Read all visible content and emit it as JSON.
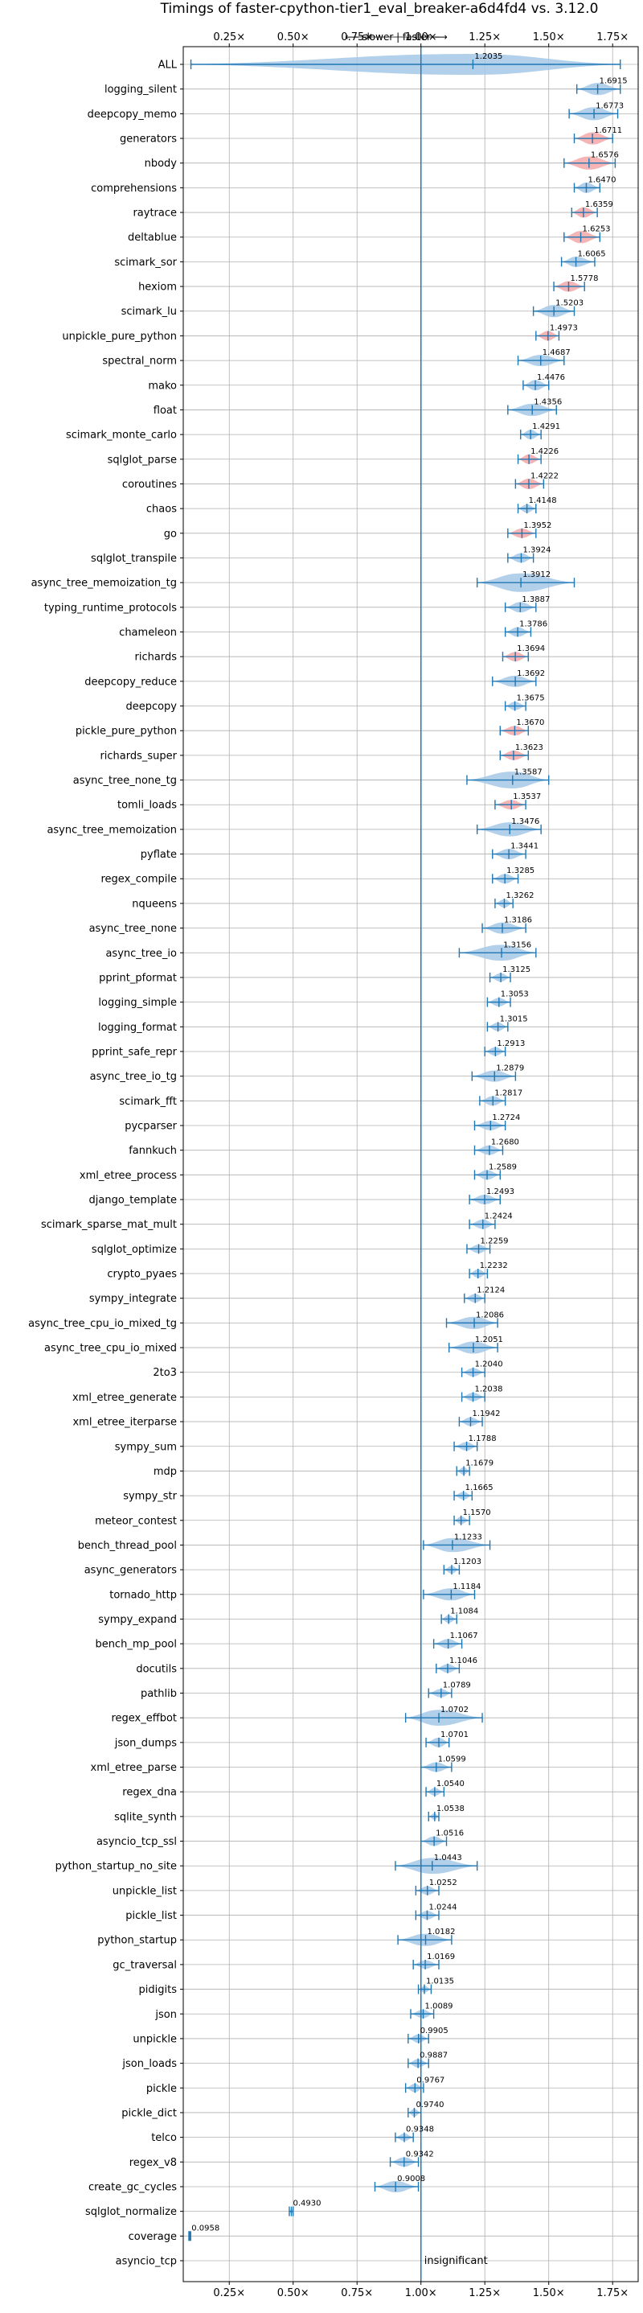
{
  "chart_data": {
    "type": "violin",
    "title": "Timings of faster-cpython-tier1_eval_breaker-a6d4fd4 vs. 3.12.0",
    "direction_label": "⟵ slower | faster ⟶",
    "xlim": [
      0.07,
      1.85
    ],
    "x_ticks": [
      0.25,
      0.5,
      0.75,
      1.0,
      1.25,
      1.5,
      1.75
    ],
    "x_tick_labels": [
      "0.25×",
      "0.50×",
      "0.75×",
      "1.00×",
      "1.25×",
      "1.50×",
      "1.75×"
    ],
    "reference_line": 1.0,
    "grid": true,
    "colors": {
      "blue": "#1f77b4",
      "violin_blue": "#a6c8e6",
      "violin_red": "#f4a7a7"
    },
    "benchmarks": [
      {
        "name": "ALL",
        "value": 1.2035,
        "label": "1.2035",
        "color": "blue",
        "lo": 0.1,
        "hi": 1.78,
        "w": 0.4
      },
      {
        "name": "logging_silent",
        "value": 1.6915,
        "label": "1.6915",
        "color": "blue",
        "lo": 1.61,
        "hi": 1.78,
        "w": 0.08
      },
      {
        "name": "deepcopy_memo",
        "value": 1.6773,
        "label": "1.6773",
        "color": "blue",
        "lo": 1.58,
        "hi": 1.77,
        "w": 0.09
      },
      {
        "name": "generators",
        "value": 1.6711,
        "label": "1.6711",
        "color": "red",
        "lo": 1.6,
        "hi": 1.75,
        "w": 0.08
      },
      {
        "name": "nbody",
        "value": 1.6576,
        "label": "1.6576",
        "color": "red",
        "lo": 1.56,
        "hi": 1.76,
        "w": 0.09
      },
      {
        "name": "comprehensions",
        "value": 1.647,
        "label": "1.6470",
        "color": "blue",
        "lo": 1.6,
        "hi": 1.7,
        "w": 0.06
      },
      {
        "name": "raytrace",
        "value": 1.6359,
        "label": "1.6359",
        "color": "red",
        "lo": 1.59,
        "hi": 1.69,
        "w": 0.06
      },
      {
        "name": "deltablue",
        "value": 1.6253,
        "label": "1.6253",
        "color": "red",
        "lo": 1.56,
        "hi": 1.7,
        "w": 0.08
      },
      {
        "name": "scimark_sor",
        "value": 1.6065,
        "label": "1.6065",
        "color": "blue",
        "lo": 1.55,
        "hi": 1.68,
        "w": 0.06
      },
      {
        "name": "hexiom",
        "value": 1.5778,
        "label": "1.5778",
        "color": "red",
        "lo": 1.52,
        "hi": 1.64,
        "w": 0.06
      },
      {
        "name": "scimark_lu",
        "value": 1.5203,
        "label": "1.5203",
        "color": "blue",
        "lo": 1.44,
        "hi": 1.6,
        "w": 0.08
      },
      {
        "name": "unpickle_pure_python",
        "value": 1.4973,
        "label": "1.4973",
        "color": "red",
        "lo": 1.45,
        "hi": 1.54,
        "w": 0.05
      },
      {
        "name": "spectral_norm",
        "value": 1.4687,
        "label": "1.4687",
        "color": "blue",
        "lo": 1.38,
        "hi": 1.56,
        "w": 0.07
      },
      {
        "name": "mako",
        "value": 1.4476,
        "label": "1.4476",
        "color": "blue",
        "lo": 1.4,
        "hi": 1.5,
        "w": 0.06
      },
      {
        "name": "float",
        "value": 1.4356,
        "label": "1.4356",
        "color": "blue",
        "lo": 1.34,
        "hi": 1.53,
        "w": 0.08
      },
      {
        "name": "scimark_monte_carlo",
        "value": 1.4291,
        "label": "1.4291",
        "color": "blue",
        "lo": 1.39,
        "hi": 1.47,
        "w": 0.05
      },
      {
        "name": "sqlglot_parse",
        "value": 1.4226,
        "label": "1.4226",
        "color": "red",
        "lo": 1.38,
        "hi": 1.47,
        "w": 0.05
      },
      {
        "name": "coroutines",
        "value": 1.4222,
        "label": "1.4222",
        "color": "red",
        "lo": 1.37,
        "hi": 1.48,
        "w": 0.06
      },
      {
        "name": "chaos",
        "value": 1.4148,
        "label": "1.4148",
        "color": "blue",
        "lo": 1.38,
        "hi": 1.45,
        "w": 0.04
      },
      {
        "name": "go",
        "value": 1.3952,
        "label": "1.3952",
        "color": "red",
        "lo": 1.34,
        "hi": 1.45,
        "w": 0.05
      },
      {
        "name": "sqlglot_transpile",
        "value": 1.3924,
        "label": "1.3924",
        "color": "blue",
        "lo": 1.34,
        "hi": 1.44,
        "w": 0.05
      },
      {
        "name": "async_tree_memoization_tg",
        "value": 1.3912,
        "label": "1.3912",
        "color": "blue",
        "lo": 1.22,
        "hi": 1.6,
        "w": 0.15
      },
      {
        "name": "typing_runtime_protocols",
        "value": 1.3887,
        "label": "1.3887",
        "color": "blue",
        "lo": 1.33,
        "hi": 1.45,
        "w": 0.06
      },
      {
        "name": "chameleon",
        "value": 1.3786,
        "label": "1.3786",
        "color": "blue",
        "lo": 1.33,
        "hi": 1.43,
        "w": 0.05
      },
      {
        "name": "richards",
        "value": 1.3694,
        "label": "1.3694",
        "color": "red",
        "lo": 1.32,
        "hi": 1.42,
        "w": 0.05
      },
      {
        "name": "deepcopy_reduce",
        "value": 1.3692,
        "label": "1.3692",
        "color": "blue",
        "lo": 1.28,
        "hi": 1.45,
        "w": 0.07
      },
      {
        "name": "deepcopy",
        "value": 1.3675,
        "label": "1.3675",
        "color": "blue",
        "lo": 1.33,
        "hi": 1.41,
        "w": 0.04
      },
      {
        "name": "pickle_pure_python",
        "value": 1.367,
        "label": "1.3670",
        "color": "red",
        "lo": 1.31,
        "hi": 1.42,
        "w": 0.05
      },
      {
        "name": "richards_super",
        "value": 1.3623,
        "label": "1.3623",
        "color": "red",
        "lo": 1.31,
        "hi": 1.42,
        "w": 0.05
      },
      {
        "name": "async_tree_none_tg",
        "value": 1.3587,
        "label": "1.3587",
        "color": "blue",
        "lo": 1.18,
        "hi": 1.5,
        "w": 0.13
      },
      {
        "name": "tomli_loads",
        "value": 1.3537,
        "label": "1.3537",
        "color": "red",
        "lo": 1.29,
        "hi": 1.41,
        "w": 0.05
      },
      {
        "name": "async_tree_memoization",
        "value": 1.3476,
        "label": "1.3476",
        "color": "blue",
        "lo": 1.22,
        "hi": 1.47,
        "w": 0.1
      },
      {
        "name": "pyflate",
        "value": 1.3441,
        "label": "1.3441",
        "color": "blue",
        "lo": 1.28,
        "hi": 1.41,
        "w": 0.06
      },
      {
        "name": "regex_compile",
        "value": 1.3285,
        "label": "1.3285",
        "color": "blue",
        "lo": 1.28,
        "hi": 1.38,
        "w": 0.05
      },
      {
        "name": "nqueens",
        "value": 1.3262,
        "label": "1.3262",
        "color": "blue",
        "lo": 1.29,
        "hi": 1.36,
        "w": 0.04
      },
      {
        "name": "async_tree_none",
        "value": 1.3186,
        "label": "1.3186",
        "color": "blue",
        "lo": 1.24,
        "hi": 1.41,
        "w": 0.07
      },
      {
        "name": "async_tree_io",
        "value": 1.3156,
        "label": "1.3156",
        "color": "blue",
        "lo": 1.15,
        "hi": 1.45,
        "w": 0.12
      },
      {
        "name": "pprint_pformat",
        "value": 1.3125,
        "label": "1.3125",
        "color": "blue",
        "lo": 1.27,
        "hi": 1.35,
        "w": 0.04
      },
      {
        "name": "logging_simple",
        "value": 1.3053,
        "label": "1.3053",
        "color": "blue",
        "lo": 1.26,
        "hi": 1.35,
        "w": 0.04
      },
      {
        "name": "logging_format",
        "value": 1.3015,
        "label": "1.3015",
        "color": "blue",
        "lo": 1.26,
        "hi": 1.34,
        "w": 0.04
      },
      {
        "name": "pprint_safe_repr",
        "value": 1.2913,
        "label": "1.2913",
        "color": "blue",
        "lo": 1.25,
        "hi": 1.33,
        "w": 0.04
      },
      {
        "name": "async_tree_io_tg",
        "value": 1.2879,
        "label": "1.2879",
        "color": "blue",
        "lo": 1.2,
        "hi": 1.37,
        "w": 0.07
      },
      {
        "name": "scimark_fft",
        "value": 1.2817,
        "label": "1.2817",
        "color": "blue",
        "lo": 1.23,
        "hi": 1.33,
        "w": 0.05
      },
      {
        "name": "pycparser",
        "value": 1.2724,
        "label": "1.2724",
        "color": "blue",
        "lo": 1.21,
        "hi": 1.33,
        "w": 0.05
      },
      {
        "name": "fannkuch",
        "value": 1.268,
        "label": "1.2680",
        "color": "blue",
        "lo": 1.21,
        "hi": 1.32,
        "w": 0.05
      },
      {
        "name": "xml_etree_process",
        "value": 1.2589,
        "label": "1.2589",
        "color": "blue",
        "lo": 1.21,
        "hi": 1.31,
        "w": 0.05
      },
      {
        "name": "django_template",
        "value": 1.2493,
        "label": "1.2493",
        "color": "blue",
        "lo": 1.19,
        "hi": 1.31,
        "w": 0.05
      },
      {
        "name": "scimark_sparse_mat_mult",
        "value": 1.2424,
        "label": "1.2424",
        "color": "blue",
        "lo": 1.19,
        "hi": 1.29,
        "w": 0.05
      },
      {
        "name": "sqlglot_optimize",
        "value": 1.2259,
        "label": "1.2259",
        "color": "blue",
        "lo": 1.18,
        "hi": 1.27,
        "w": 0.04
      },
      {
        "name": "crypto_pyaes",
        "value": 1.2232,
        "label": "1.2232",
        "color": "blue",
        "lo": 1.19,
        "hi": 1.26,
        "w": 0.04
      },
      {
        "name": "sympy_integrate",
        "value": 1.2124,
        "label": "1.2124",
        "color": "blue",
        "lo": 1.17,
        "hi": 1.25,
        "w": 0.04
      },
      {
        "name": "async_tree_cpu_io_mixed_tg",
        "value": 1.2086,
        "label": "1.2086",
        "color": "blue",
        "lo": 1.1,
        "hi": 1.3,
        "w": 0.08
      },
      {
        "name": "async_tree_cpu_io_mixed",
        "value": 1.2051,
        "label": "1.2051",
        "color": "blue",
        "lo": 1.11,
        "hi": 1.3,
        "w": 0.08
      },
      {
        "name": "2to3",
        "value": 1.204,
        "label": "1.2040",
        "color": "blue",
        "lo": 1.16,
        "hi": 1.25,
        "w": 0.04
      },
      {
        "name": "xml_etree_generate",
        "value": 1.2038,
        "label": "1.2038",
        "color": "blue",
        "lo": 1.16,
        "hi": 1.25,
        "w": 0.04
      },
      {
        "name": "xml_etree_iterparse",
        "value": 1.1942,
        "label": "1.1942",
        "color": "blue",
        "lo": 1.15,
        "hi": 1.24,
        "w": 0.04
      },
      {
        "name": "sympy_sum",
        "value": 1.1788,
        "label": "1.1788",
        "color": "blue",
        "lo": 1.13,
        "hi": 1.22,
        "w": 0.04
      },
      {
        "name": "mdp",
        "value": 1.1679,
        "label": "1.1679",
        "color": "blue",
        "lo": 1.14,
        "hi": 1.19,
        "w": 0.03
      },
      {
        "name": "sympy_str",
        "value": 1.1665,
        "label": "1.1665",
        "color": "blue",
        "lo": 1.13,
        "hi": 1.2,
        "w": 0.03
      },
      {
        "name": "meteor_contest",
        "value": 1.157,
        "label": "1.1570",
        "color": "blue",
        "lo": 1.13,
        "hi": 1.19,
        "w": 0.03
      },
      {
        "name": "bench_thread_pool",
        "value": 1.1233,
        "label": "1.1233",
        "color": "blue",
        "lo": 1.01,
        "hi": 1.27,
        "w": 0.1
      },
      {
        "name": "async_generators",
        "value": 1.1203,
        "label": "1.1203",
        "color": "blue",
        "lo": 1.09,
        "hi": 1.15,
        "w": 0.03
      },
      {
        "name": "tornado_http",
        "value": 1.1184,
        "label": "1.1184",
        "color": "blue",
        "lo": 1.01,
        "hi": 1.21,
        "w": 0.08
      },
      {
        "name": "sympy_expand",
        "value": 1.1084,
        "label": "1.1084",
        "color": "blue",
        "lo": 1.08,
        "hi": 1.14,
        "w": 0.03
      },
      {
        "name": "bench_mp_pool",
        "value": 1.1067,
        "label": "1.1067",
        "color": "blue",
        "lo": 1.05,
        "hi": 1.16,
        "w": 0.05
      },
      {
        "name": "docutils",
        "value": 1.1046,
        "label": "1.1046",
        "color": "blue",
        "lo": 1.06,
        "hi": 1.15,
        "w": 0.04
      },
      {
        "name": "pathlib",
        "value": 1.0789,
        "label": "1.0789",
        "color": "blue",
        "lo": 1.03,
        "hi": 1.12,
        "w": 0.04
      },
      {
        "name": "regex_effbot",
        "value": 1.0702,
        "label": "1.0702",
        "color": "blue",
        "lo": 0.94,
        "hi": 1.24,
        "w": 0.12
      },
      {
        "name": "json_dumps",
        "value": 1.0701,
        "label": "1.0701",
        "color": "blue",
        "lo": 1.02,
        "hi": 1.11,
        "w": 0.05
      },
      {
        "name": "xml_etree_parse",
        "value": 1.0599,
        "label": "1.0599",
        "color": "blue",
        "lo": 1.0,
        "hi": 1.12,
        "w": 0.05
      },
      {
        "name": "regex_dna",
        "value": 1.054,
        "label": "1.0540",
        "color": "blue",
        "lo": 1.02,
        "hi": 1.09,
        "w": 0.03
      },
      {
        "name": "sqlite_synth",
        "value": 1.0538,
        "label": "1.0538",
        "color": "blue",
        "lo": 1.03,
        "hi": 1.07,
        "w": 0.02
      },
      {
        "name": "asyncio_tcp_ssl",
        "value": 1.0516,
        "label": "1.0516",
        "color": "blue",
        "lo": 1.0,
        "hi": 1.1,
        "w": 0.05
      },
      {
        "name": "python_startup_no_site",
        "value": 1.0443,
        "label": "1.0443",
        "color": "blue",
        "lo": 0.9,
        "hi": 1.22,
        "w": 0.12
      },
      {
        "name": "unpickle_list",
        "value": 1.0252,
        "label": "1.0252",
        "color": "blue",
        "lo": 0.98,
        "hi": 1.07,
        "w": 0.04
      },
      {
        "name": "pickle_list",
        "value": 1.0244,
        "label": "1.0244",
        "color": "blue",
        "lo": 0.98,
        "hi": 1.07,
        "w": 0.04
      },
      {
        "name": "python_startup",
        "value": 1.0182,
        "label": "1.0182",
        "color": "blue",
        "lo": 0.91,
        "hi": 1.12,
        "w": 0.08
      },
      {
        "name": "gc_traversal",
        "value": 1.0169,
        "label": "1.0169",
        "color": "blue",
        "lo": 0.97,
        "hi": 1.07,
        "w": 0.04
      },
      {
        "name": "pidigits",
        "value": 1.0135,
        "label": "1.0135",
        "color": "blue",
        "lo": 0.99,
        "hi": 1.04,
        "w": 0.02
      },
      {
        "name": "json",
        "value": 1.0089,
        "label": "1.0089",
        "color": "blue",
        "lo": 0.96,
        "hi": 1.05,
        "w": 0.04
      },
      {
        "name": "unpickle",
        "value": 0.9905,
        "label": "0.9905",
        "color": "blue",
        "lo": 0.95,
        "hi": 1.03,
        "w": 0.04
      },
      {
        "name": "json_loads",
        "value": 0.9887,
        "label": "0.9887",
        "color": "blue",
        "lo": 0.95,
        "hi": 1.03,
        "w": 0.04
      },
      {
        "name": "pickle",
        "value": 0.9767,
        "label": "0.9767",
        "color": "blue",
        "lo": 0.94,
        "hi": 1.01,
        "w": 0.04
      },
      {
        "name": "pickle_dict",
        "value": 0.974,
        "label": "0.9740",
        "color": "blue",
        "lo": 0.95,
        "hi": 1.0,
        "w": 0.03
      },
      {
        "name": "telco",
        "value": 0.9348,
        "label": "0.9348",
        "color": "blue",
        "lo": 0.9,
        "hi": 0.97,
        "w": 0.03
      },
      {
        "name": "regex_v8",
        "value": 0.9342,
        "label": "0.9342",
        "color": "blue",
        "lo": 0.88,
        "hi": 0.99,
        "w": 0.05
      },
      {
        "name": "create_gc_cycles",
        "value": 0.9008,
        "label": "0.9008",
        "color": "blue",
        "lo": 0.82,
        "hi": 0.99,
        "w": 0.07
      },
      {
        "name": "sqlglot_normalize",
        "value": 0.493,
        "label": "0.4930",
        "color": "blue",
        "lo": 0.485,
        "hi": 0.5,
        "w": 0.01
      },
      {
        "name": "coverage",
        "value": 0.0958,
        "label": "0.0958",
        "color": "blue",
        "lo": 0.092,
        "hi": 0.099,
        "w": 0.005
      },
      {
        "name": "asyncio_tcp",
        "value": null,
        "label": "insignificant",
        "color": "none"
      }
    ]
  }
}
